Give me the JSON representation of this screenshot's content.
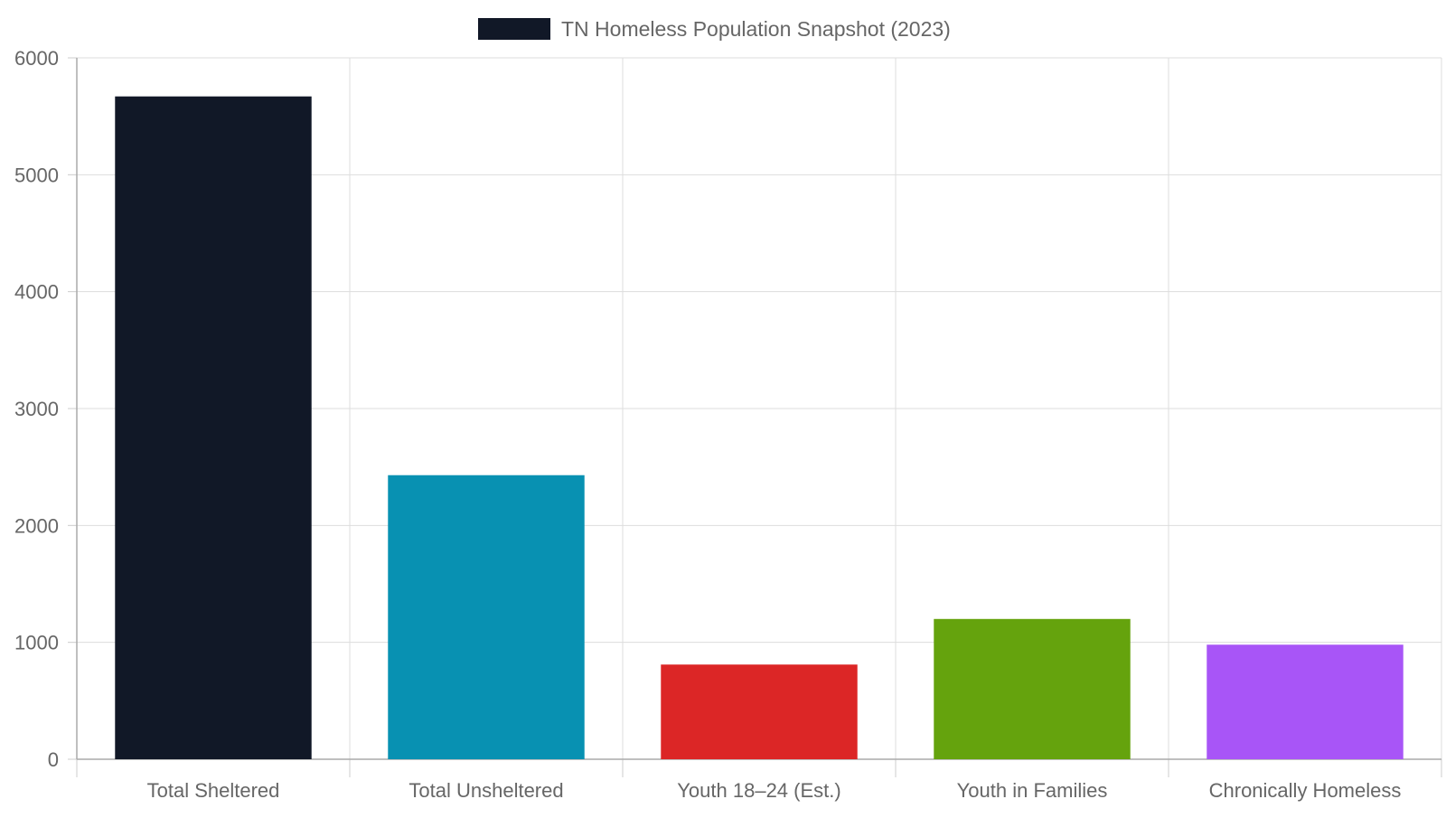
{
  "chart_data": {
    "type": "bar",
    "title": "",
    "xlabel": "",
    "ylabel": "",
    "categories": [
      "Total Sheltered",
      "Total Unsheltered",
      "Youth 18–24 (Est.)",
      "Youth in Families",
      "Chronically Homeless"
    ],
    "series": [
      {
        "name": "TN Homeless Population Snapshot (2023)",
        "values": [
          5670,
          2430,
          810,
          1200,
          980
        ],
        "colors": [
          "#111827",
          "#0891b2",
          "#dc2626",
          "#65a30d",
          "#a855f7"
        ]
      }
    ],
    "ylim": [
      0,
      6000
    ],
    "yticks": [
      0,
      1000,
      2000,
      3000,
      4000,
      5000,
      6000
    ],
    "grid": true,
    "legend_position": "top-center",
    "legend_swatch_color": "#111827"
  }
}
